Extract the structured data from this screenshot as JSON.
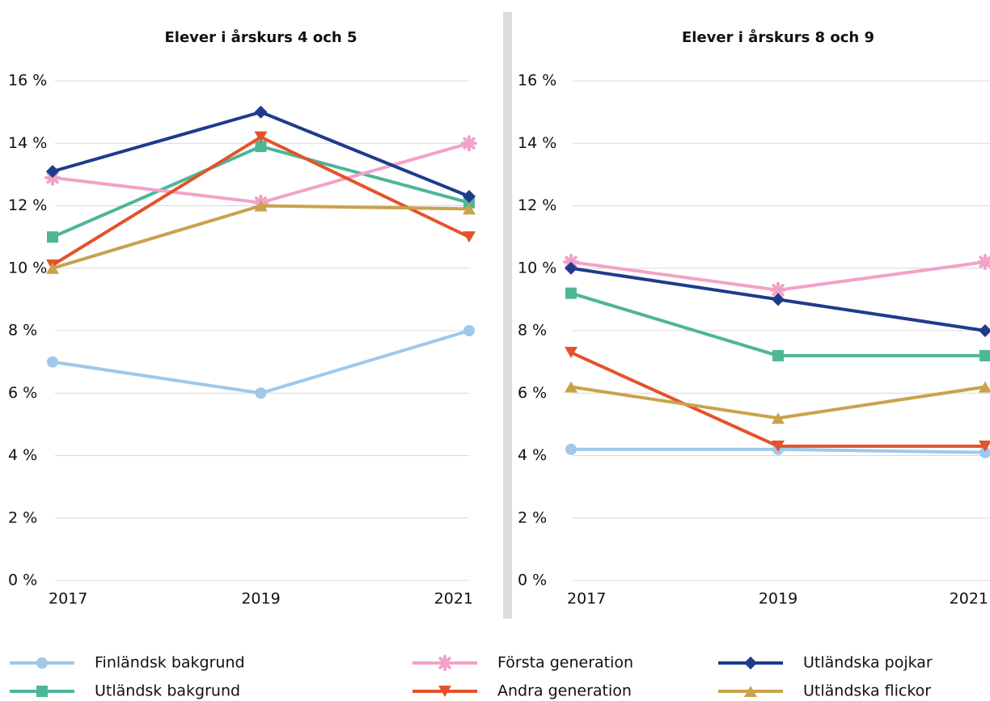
{
  "chart_data": [
    {
      "type": "line",
      "title": "Elever i årskurs 4 och 5",
      "categories": [
        "2017",
        "2019",
        "2021"
      ],
      "ylim": [
        0,
        16
      ],
      "yticks": [
        {
          "value": 0,
          "label": "0 %"
        },
        {
          "value": 2,
          "label": "2 %"
        },
        {
          "value": 4,
          "label": "4 %"
        },
        {
          "value": 6,
          "label": "6 %"
        },
        {
          "value": 8,
          "label": "8 %"
        },
        {
          "value": 10,
          "label": "10 %"
        },
        {
          "value": 12,
          "label": "12 %"
        },
        {
          "value": 14,
          "label": "14 %"
        },
        {
          "value": 16,
          "label": "16 %"
        }
      ],
      "grid": true,
      "series": [
        {
          "name": "Finländsk bakgrund",
          "color": "#9fc8ea",
          "marker": "circle",
          "values": [
            7,
            6,
            8
          ]
        },
        {
          "name": "Utländsk bakgrund",
          "color": "#4db696",
          "marker": "square",
          "values": [
            11,
            13.9,
            12.1
          ]
        },
        {
          "name": "Första generation",
          "color": "#f2a2c9",
          "marker": "star",
          "values": [
            12.9,
            12.1,
            14
          ]
        },
        {
          "name": "Andra generation",
          "color": "#e3532a",
          "marker": "triangle-down",
          "values": [
            10.1,
            14.2,
            11
          ]
        },
        {
          "name": "Utländska pojkar",
          "color": "#1f3b8c",
          "marker": "diamond",
          "values": [
            13.1,
            15,
            12.3
          ]
        },
        {
          "name": "Utländska flickor",
          "color": "#caa24b",
          "marker": "triangle-up",
          "values": [
            10,
            12,
            11.9
          ]
        }
      ]
    },
    {
      "type": "line",
      "title": "Elever i årskurs 8 och 9",
      "categories": [
        "2017",
        "2019",
        "2021"
      ],
      "ylim": [
        0,
        16
      ],
      "yticks": [
        {
          "value": 0,
          "label": "0 %"
        },
        {
          "value": 2,
          "label": "2 %"
        },
        {
          "value": 4,
          "label": "4 %"
        },
        {
          "value": 6,
          "label": "6 %"
        },
        {
          "value": 8,
          "label": "8 %"
        },
        {
          "value": 10,
          "label": "10 %"
        },
        {
          "value": 12,
          "label": "12 %"
        },
        {
          "value": 14,
          "label": "14 %"
        },
        {
          "value": 16,
          "label": "16 %"
        }
      ],
      "grid": true,
      "series": [
        {
          "name": "Finländsk bakgrund",
          "color": "#9fc8ea",
          "marker": "circle",
          "values": [
            4.2,
            4.2,
            4.1
          ]
        },
        {
          "name": "Utländsk bakgrund",
          "color": "#4db696",
          "marker": "square",
          "values": [
            9.2,
            7.2,
            7.2
          ]
        },
        {
          "name": "Första generation",
          "color": "#f2a2c9",
          "marker": "star",
          "values": [
            10.2,
            9.3,
            10.2
          ]
        },
        {
          "name": "Andra generation",
          "color": "#e3532a",
          "marker": "triangle-down",
          "values": [
            7.3,
            4.3,
            4.3
          ]
        },
        {
          "name": "Utländska pojkar",
          "color": "#1f3b8c",
          "marker": "diamond",
          "values": [
            10,
            9,
            8
          ]
        },
        {
          "name": "Utländska flickor",
          "color": "#caa24b",
          "marker": "triangle-up",
          "values": [
            6.2,
            5.2,
            6.2
          ]
        }
      ]
    }
  ]
}
